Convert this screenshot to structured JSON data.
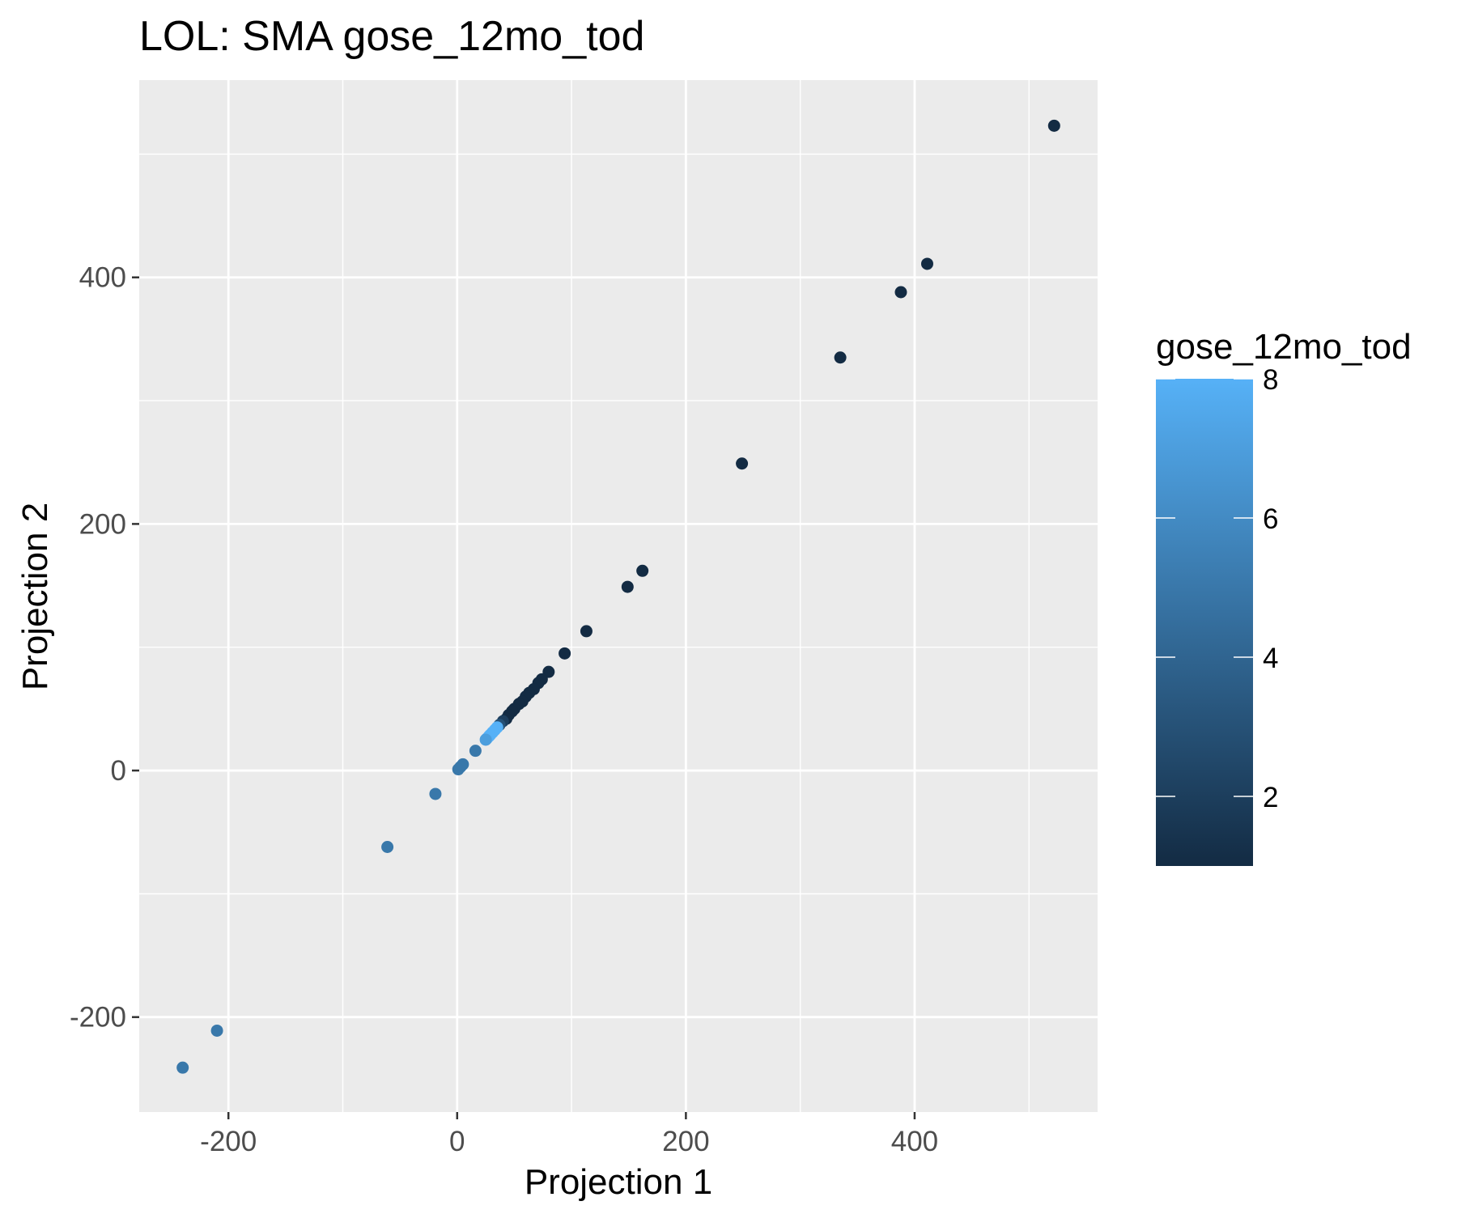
{
  "chart_data": {
    "type": "scatter",
    "title": "LOL: SMA gose_12mo_tod",
    "xlabel": "Projection 1",
    "ylabel": "Projection 2",
    "xlim": [
      -278,
      560
    ],
    "ylim": [
      -277,
      560
    ],
    "x_ticks": [
      -200,
      0,
      200,
      400
    ],
    "x_tick_labels": [
      "-200",
      "0",
      "200",
      "400"
    ],
    "x_minor": [
      -100,
      100,
      300,
      500
    ],
    "y_ticks": [
      -200,
      0,
      200,
      400
    ],
    "y_tick_labels": [
      "-200",
      "0",
      "200",
      "400"
    ],
    "y_minor": [
      -100,
      100,
      300,
      500
    ],
    "grid": true,
    "legend": {
      "title": "gose_12mo_tod",
      "position": "right",
      "type": "continuous colorbar",
      "min": 1,
      "max": 8,
      "ticks": [
        2,
        4,
        6,
        8
      ],
      "tick_labels": [
        "2",
        "4",
        "6",
        "8"
      ],
      "color_low": "#132b43",
      "color_high": "#56b1f7"
    },
    "points": [
      {
        "x": 522,
        "y": 523,
        "c": 1
      },
      {
        "x": 411,
        "y": 411,
        "c": 1
      },
      {
        "x": 388,
        "y": 388,
        "c": 1
      },
      {
        "x": 335,
        "y": 335,
        "c": 1
      },
      {
        "x": 249,
        "y": 249,
        "c": 1
      },
      {
        "x": 162,
        "y": 162,
        "c": 1
      },
      {
        "x": 149,
        "y": 149,
        "c": 1
      },
      {
        "x": 113,
        "y": 113,
        "c": 1
      },
      {
        "x": 94,
        "y": 95,
        "c": 1
      },
      {
        "x": 80,
        "y": 80,
        "c": 1
      },
      {
        "x": 74,
        "y": 74,
        "c": 1
      },
      {
        "x": 71,
        "y": 71,
        "c": 1
      },
      {
        "x": 67,
        "y": 66,
        "c": 1
      },
      {
        "x": 63,
        "y": 63,
        "c": 1
      },
      {
        "x": 60,
        "y": 60,
        "c": 1
      },
      {
        "x": 57,
        "y": 56,
        "c": 1
      },
      {
        "x": 54,
        "y": 54,
        "c": 1
      },
      {
        "x": 50,
        "y": 50,
        "c": 1
      },
      {
        "x": 48,
        "y": 48,
        "c": 1
      },
      {
        "x": 45,
        "y": 45,
        "c": 1
      },
      {
        "x": 43,
        "y": 42,
        "c": 1
      },
      {
        "x": 40,
        "y": 40,
        "c": 2
      },
      {
        "x": 37,
        "y": 37,
        "c": 3
      },
      {
        "x": 35,
        "y": 35,
        "c": 8
      },
      {
        "x": 33,
        "y": 33,
        "c": 8
      },
      {
        "x": 31,
        "y": 31,
        "c": 8
      },
      {
        "x": 29,
        "y": 29,
        "c": 8
      },
      {
        "x": 28,
        "y": 28,
        "c": 8
      },
      {
        "x": 26,
        "y": 26,
        "c": 8
      },
      {
        "x": 25,
        "y": 25,
        "c": 7
      },
      {
        "x": 16,
        "y": 16,
        "c": 5
      },
      {
        "x": 5,
        "y": 5,
        "c": 5
      },
      {
        "x": 3,
        "y": 3,
        "c": 5
      },
      {
        "x": 1,
        "y": 1,
        "c": 5
      },
      {
        "x": -19,
        "y": -19,
        "c": 5
      },
      {
        "x": -61,
        "y": -62,
        "c": 5
      },
      {
        "x": -210,
        "y": -211,
        "c": 5
      },
      {
        "x": -240,
        "y": -241,
        "c": 5
      }
    ]
  }
}
